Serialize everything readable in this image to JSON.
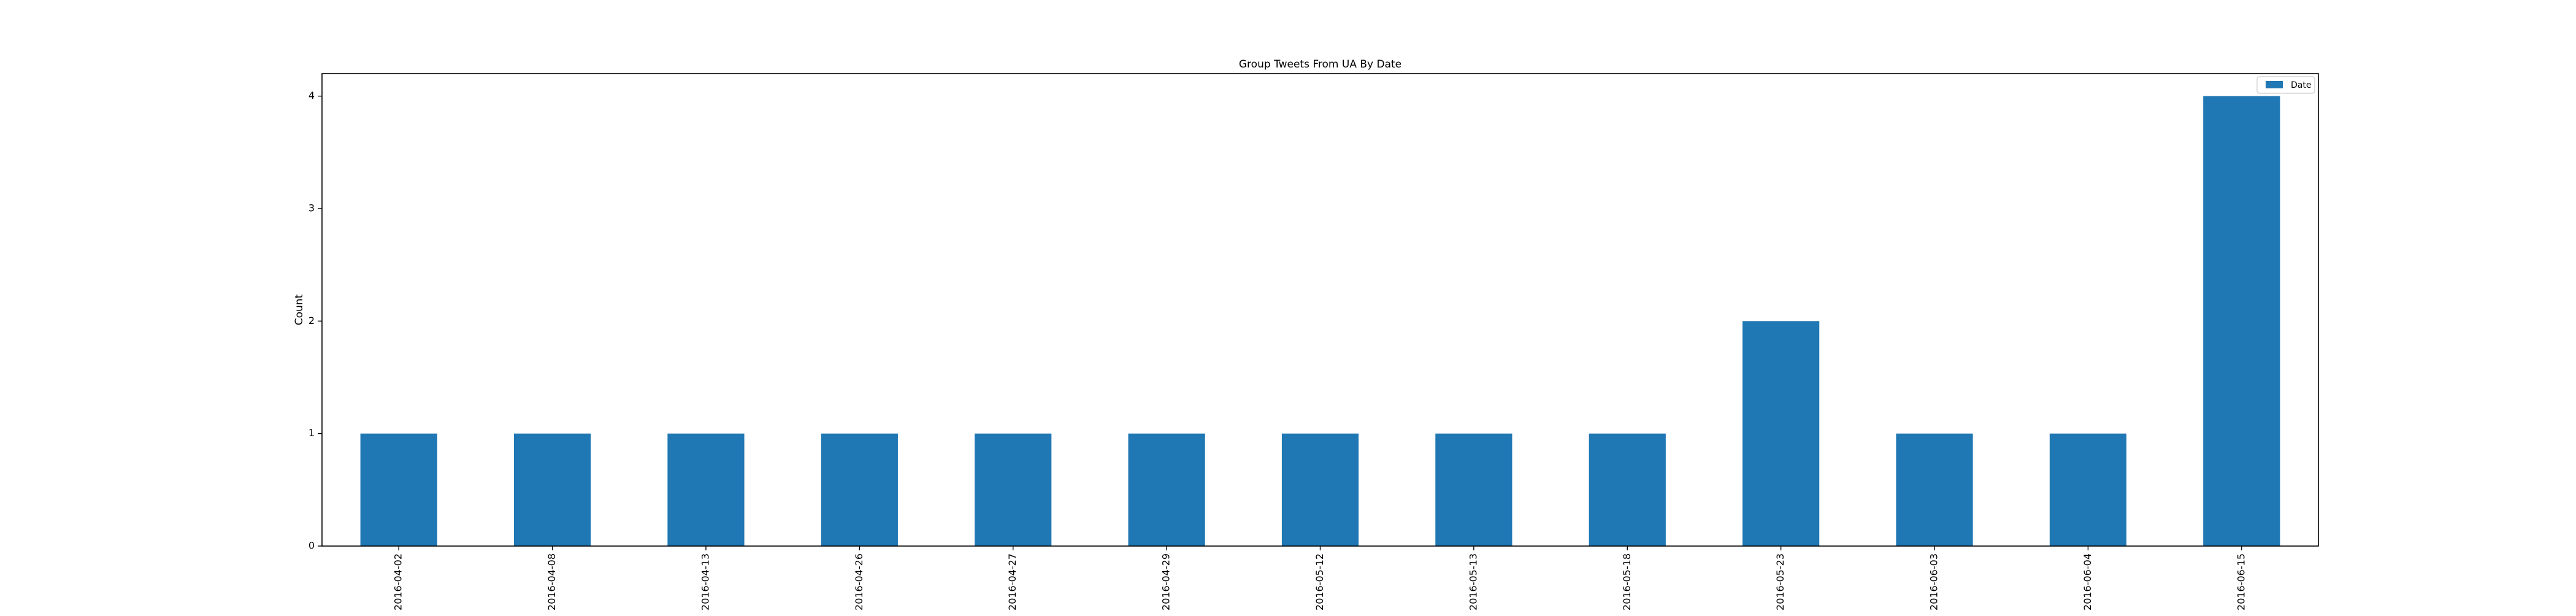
{
  "chart_data": {
    "type": "bar",
    "title": "Group Tweets From UA By Date",
    "xlabel": "",
    "ylabel": "Count",
    "categories": [
      "2016-04-02",
      "2016-04-08",
      "2016-04-13",
      "2016-04-26",
      "2016-04-27",
      "2016-04-29",
      "2016-05-12",
      "2016-05-13",
      "2016-05-18",
      "2016-05-23",
      "2016-06-03",
      "2016-06-04",
      "2016-06-15"
    ],
    "series": [
      {
        "name": "Date",
        "values": [
          1,
          1,
          1,
          1,
          1,
          1,
          1,
          1,
          1,
          2,
          1,
          1,
          4
        ],
        "color": "#1f77b4"
      }
    ],
    "ylim": [
      0,
      4.2
    ],
    "yticks": [
      0,
      1,
      2,
      3,
      4
    ],
    "grid": false,
    "legend_position": "top-right"
  }
}
